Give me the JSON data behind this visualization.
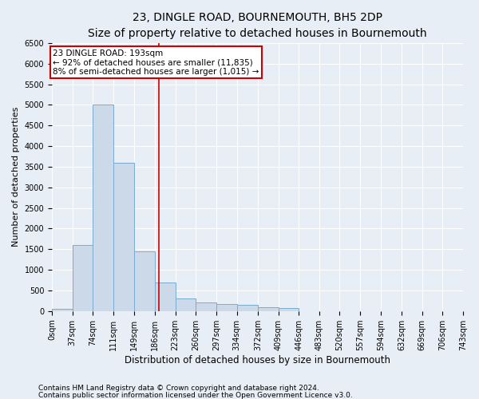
{
  "title": "23, DINGLE ROAD, BOURNEMOUTH, BH5 2DP",
  "subtitle": "Size of property relative to detached houses in Bournemouth",
  "xlabel": "Distribution of detached houses by size in Bournemouth",
  "ylabel": "Number of detached properties",
  "bin_edges": [
    0,
    37,
    74,
    111,
    149,
    186,
    223,
    260,
    297,
    334,
    372,
    409,
    446,
    483,
    520,
    557,
    594,
    632,
    669,
    706,
    743
  ],
  "bar_heights": [
    50,
    1600,
    5000,
    3600,
    1450,
    700,
    300,
    200,
    170,
    150,
    100,
    80,
    0,
    0,
    0,
    0,
    0,
    0,
    0,
    0
  ],
  "bar_color": "#ccd9e8",
  "bar_edgecolor": "#7aabcf",
  "vline_x": 193,
  "vline_color": "#cc0000",
  "annotation_text": "23 DINGLE ROAD: 193sqm\n← 92% of detached houses are smaller (11,835)\n8% of semi-detached houses are larger (1,015) →",
  "annotation_box_edgecolor": "#cc0000",
  "ylim": [
    0,
    6500
  ],
  "yticks": [
    0,
    500,
    1000,
    1500,
    2000,
    2500,
    3000,
    3500,
    4000,
    4500,
    5000,
    5500,
    6000,
    6500
  ],
  "footnote1": "Contains HM Land Registry data © Crown copyright and database right 2024.",
  "footnote2": "Contains public sector information licensed under the Open Government Licence v3.0.",
  "bg_color": "#e8eef5",
  "plot_bg_color": "#e8eef5",
  "grid_color": "#ffffff",
  "title_fontsize": 10,
  "xlabel_fontsize": 8.5,
  "ylabel_fontsize": 8,
  "tick_fontsize": 7,
  "annot_fontsize": 7.5,
  "footnote_fontsize": 6.5
}
